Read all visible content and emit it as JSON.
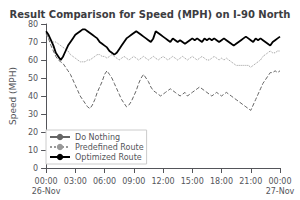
{
  "chart_data": {
    "type": "line",
    "title": "Result Comparison for Speed (MPH) on I-90 North",
    "ylabel": "Speed (MPH)",
    "ylim": [
      0,
      80
    ],
    "yticks": [
      0,
      10,
      20,
      30,
      40,
      50,
      60,
      70,
      80
    ],
    "categories": [
      "00:00",
      null,
      null,
      null,
      null,
      null,
      null,
      null,
      null,
      null,
      null,
      null,
      "03:00",
      null,
      null,
      null,
      null,
      null,
      null,
      null,
      null,
      null,
      null,
      null,
      "06:00",
      null,
      null,
      null,
      null,
      null,
      null,
      null,
      null,
      null,
      null,
      null,
      "09:00",
      null,
      null,
      null,
      null,
      null,
      null,
      null,
      null,
      null,
      null,
      null,
      "12:00",
      null,
      null,
      null,
      null,
      null,
      null,
      null,
      null,
      null,
      null,
      null,
      "15:00",
      null,
      null,
      null,
      null,
      null,
      null,
      null,
      null,
      null,
      null,
      null,
      "18:00",
      null,
      null,
      null,
      null,
      null,
      null,
      null,
      null,
      null,
      null,
      null,
      "21:00",
      null,
      null,
      null,
      null,
      null,
      null,
      null,
      null,
      null,
      null,
      null,
      "00:00"
    ],
    "annotations": [
      {
        "text": "26-Nov",
        "x": 0
      },
      {
        "text": "27-Nov",
        "x": 96
      }
    ],
    "grid": false,
    "legend": "lower left",
    "series": [
      {
        "name": "Do Nothing",
        "color": "#666666",
        "line_style": "dashed",
        "values": [
          75,
          72,
          68,
          65,
          62,
          60,
          59,
          58,
          56,
          54,
          52,
          49,
          46,
          43,
          40,
          38,
          36,
          34,
          33,
          35,
          38,
          42,
          45,
          48,
          52,
          54,
          52,
          50,
          47,
          44,
          41,
          38,
          36,
          34,
          35,
          37,
          40,
          43,
          47,
          50,
          52,
          50,
          48,
          45,
          43,
          42,
          41,
          40,
          41,
          42,
          43,
          44,
          43,
          42,
          41,
          40,
          41,
          42,
          40,
          41,
          42,
          43,
          44,
          45,
          44,
          43,
          42,
          41,
          40,
          41,
          42,
          41,
          40,
          41,
          42,
          41,
          40,
          39,
          38,
          37,
          36,
          35,
          34,
          33,
          32,
          35,
          38,
          41,
          44,
          47,
          49,
          51,
          53,
          53,
          54,
          53,
          54
        ]
      },
      {
        "name": "Predefined Route",
        "color": "#999999",
        "line_style": "dotted",
        "values": [
          74,
          72,
          71,
          70,
          70,
          69,
          68,
          67,
          66,
          65,
          63,
          62,
          61,
          60,
          59,
          59,
          59,
          60,
          60,
          61,
          62,
          63,
          63,
          62,
          62,
          61,
          62,
          63,
          62,
          61,
          60,
          61,
          62,
          61,
          60,
          61,
          62,
          61,
          60,
          61,
          62,
          61,
          60,
          61,
          62,
          61,
          60,
          61,
          62,
          61,
          60,
          61,
          62,
          61,
          60,
          61,
          62,
          61,
          60,
          61,
          62,
          61,
          60,
          61,
          62,
          61,
          60,
          60,
          61,
          62,
          61,
          60,
          61,
          60,
          61,
          60,
          59,
          58,
          57,
          57,
          57,
          57,
          57,
          57,
          56,
          57,
          58,
          59,
          60,
          62,
          63,
          64,
          65,
          64,
          64,
          65,
          65
        ]
      },
      {
        "name": "Optimized Route",
        "color": "#000000",
        "line_style": "solid",
        "values": [
          76,
          74,
          71,
          68,
          64,
          62,
          60,
          62,
          65,
          68,
          70,
          72,
          74,
          75,
          76,
          77,
          77,
          76,
          75,
          74,
          73,
          72,
          70,
          69,
          68,
          67,
          65,
          64,
          63,
          64,
          66,
          68,
          70,
          72,
          73,
          74,
          75,
          76,
          75,
          74,
          73,
          72,
          71,
          70,
          72,
          76,
          75,
          74,
          73,
          72,
          71,
          70,
          72,
          71,
          70,
          71,
          70,
          69,
          70,
          71,
          72,
          71,
          72,
          71,
          70,
          72,
          71,
          72,
          71,
          72,
          71,
          70,
          71,
          72,
          71,
          70,
          69,
          68,
          69,
          70,
          71,
          72,
          73,
          72,
          71,
          70,
          72,
          71,
          72,
          71,
          70,
          69,
          68,
          70,
          71,
          72,
          73
        ]
      }
    ]
  }
}
